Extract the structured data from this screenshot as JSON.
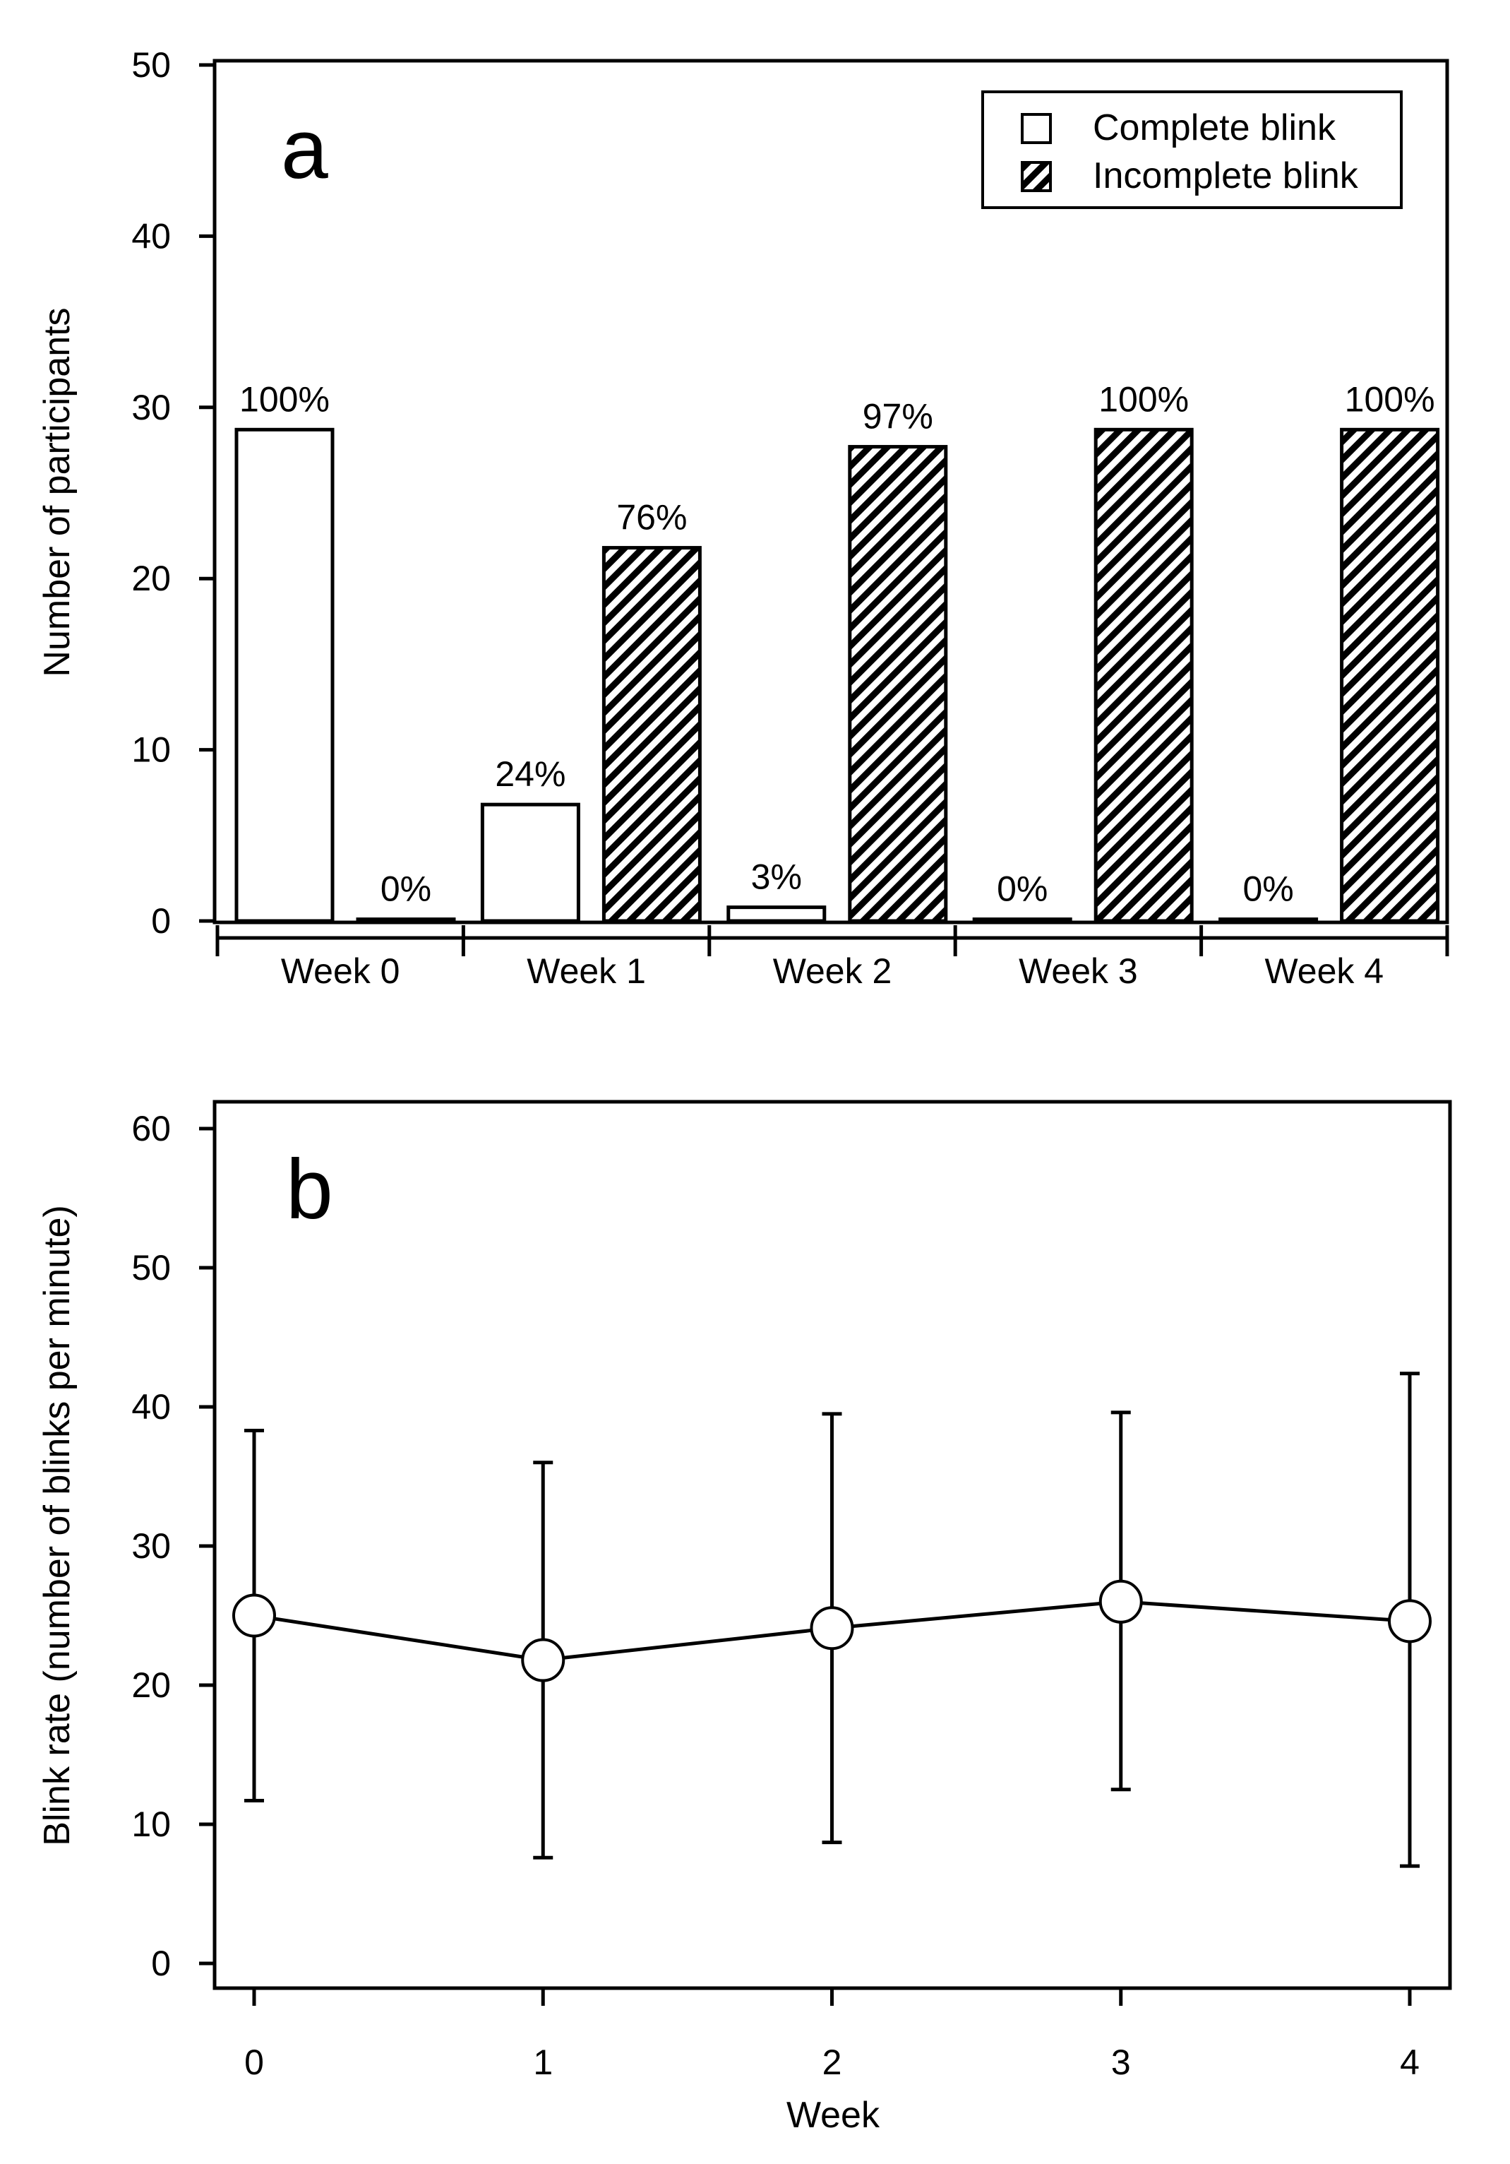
{
  "chart_data": [
    {
      "type": "bar",
      "panel_label": "a",
      "ylabel": "Number of participants",
      "xlabel": "",
      "ylim": [
        0,
        50
      ],
      "yticks": [
        0,
        10,
        20,
        30,
        40,
        50
      ],
      "categories": [
        "Week 0",
        "Week 1",
        "Week 2",
        "Week 3",
        "Week 4"
      ],
      "series": [
        {
          "name": "Complete blink",
          "pattern": "open",
          "values": [
            28.7,
            6.8,
            0.8,
            0.1,
            0.1
          ],
          "labels": [
            "100%",
            "24%",
            "3%",
            "0%",
            "0%"
          ]
        },
        {
          "name": "Incomplete blink",
          "pattern": "hatched",
          "values": [
            0.1,
            21.8,
            27.7,
            28.7,
            28.7
          ],
          "labels": [
            "0%",
            "76%",
            "97%",
            "100%",
            "100%"
          ]
        }
      ],
      "legend": [
        "Complete blink",
        "Incomplete blink"
      ],
      "legend_position": "top-right"
    },
    {
      "type": "line",
      "panel_label": "b",
      "ylabel": "Blink rate (number of blinks per minute)",
      "xlabel": "Week",
      "ylim": [
        0,
        60
      ],
      "yticks": [
        0,
        10,
        20,
        30,
        40,
        50,
        60
      ],
      "x": [
        0,
        1,
        2,
        3,
        4
      ],
      "xtick_labels": [
        "0",
        "1",
        "2",
        "3",
        "4"
      ],
      "series": [
        {
          "name": "Blink rate",
          "values": [
            25.0,
            21.8,
            24.1,
            26.0,
            24.6
          ],
          "err_low": [
            11.7,
            7.6,
            8.7,
            12.5,
            7.0
          ],
          "err_high": [
            38.3,
            36.0,
            39.5,
            39.6,
            42.4
          ]
        }
      ]
    }
  ]
}
